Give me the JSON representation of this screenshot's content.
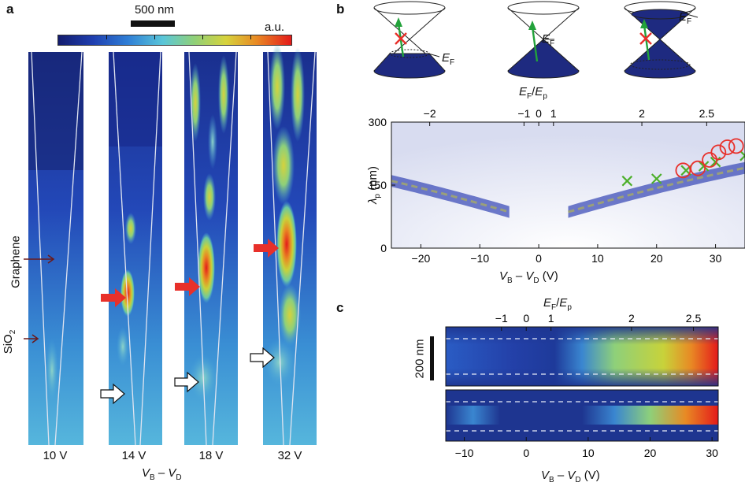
{
  "figure": {
    "panel_labels": [
      "a",
      "b",
      "c"
    ]
  },
  "panel_a": {
    "scale_bar": "500 nm",
    "colorbar_unit": "a.u.",
    "material_labels": {
      "graphene": "Graphene",
      "sio2": "SiO",
      "sio2_sub": "2"
    },
    "voltage_labels": [
      "10 V",
      "14 V",
      "18 V",
      "32 V"
    ],
    "xlabel_main": "V",
    "xlabel_sub1": "B",
    "xlabel_dash": " – ",
    "xlabel_main2": "V",
    "xlabel_sub2": "D",
    "colors": {
      "red_arrow": "#e8302a",
      "dark_arrow": "#6b1a1a"
    }
  },
  "panel_b": {
    "cone_label": "E",
    "cone_label_sub": "F",
    "top_axis_label": "E",
    "top_axis_sub1": "F",
    "top_axis_slash": "/",
    "top_axis_label2": "E",
    "top_axis_sub2": "p",
    "ylabel": "λ",
    "ylabel_sub": "p",
    "ylabel_unit": " (nm)",
    "xlabel": "V",
    "xlabel_sub1": "B",
    "xlabel_mid": " – ",
    "xlabel2": "V",
    "xlabel_sub2": "D",
    "xlabel_unit": " (V)",
    "chart_data": {
      "type": "scatter",
      "xlim": [
        -25,
        35
      ],
      "ylim": [
        0,
        300
      ],
      "x_ticks": [
        -20,
        -10,
        0,
        10,
        20,
        30
      ],
      "y_ticks": [
        0,
        150,
        300
      ],
      "top_ticks": [
        {
          "label": "−2",
          "x": -18.5
        },
        {
          "label": "−1",
          "x": -2.5
        },
        {
          "label": "0",
          "x": 0
        },
        {
          "label": "1",
          "x": 2.5
        },
        {
          "label": "2",
          "x": 17.5
        },
        {
          "label": "2.5",
          "x": 28.5
        }
      ],
      "series": [
        {
          "marker": "cross",
          "color": "#4caf2a",
          "x": [
            15,
            20,
            25,
            28,
            30,
            35
          ],
          "y": [
            160,
            165,
            185,
            195,
            205,
            220
          ]
        },
        {
          "marker": "circle",
          "color": "#e8302a",
          "x": [
            24.5,
            27,
            29,
            30.5,
            32,
            33.5
          ],
          "y": [
            185,
            190,
            210,
            228,
            240,
            243
          ]
        }
      ],
      "dashed_curve": {
        "color": "#9aa07a",
        "left_x": [
          -25,
          -5
        ],
        "right_x": [
          5,
          35
        ]
      }
    }
  },
  "panel_c": {
    "top_axis_label": "E",
    "top_axis_sub1": "F",
    "top_axis_slash": "/",
    "top_axis_label2": "E",
    "top_axis_sub2": "p",
    "scale_bar": "200 nm",
    "xlabel": "V",
    "xlabel_sub1": "B",
    "xlabel_mid": " – ",
    "xlabel2": "V",
    "xlabel_sub2": "D",
    "xlabel_unit": " (V)",
    "chart_data": {
      "type": "heatmap",
      "xlim": [
        -13,
        31
      ],
      "x_ticks": [
        -10,
        0,
        10,
        20,
        30
      ],
      "top_ticks": [
        {
          "label": "−1",
          "x": -4
        },
        {
          "label": "0",
          "x": 0
        },
        {
          "label": "1",
          "x": 4
        },
        {
          "label": "2",
          "x": 17
        },
        {
          "label": "2.5",
          "x": 27
        }
      ]
    }
  }
}
